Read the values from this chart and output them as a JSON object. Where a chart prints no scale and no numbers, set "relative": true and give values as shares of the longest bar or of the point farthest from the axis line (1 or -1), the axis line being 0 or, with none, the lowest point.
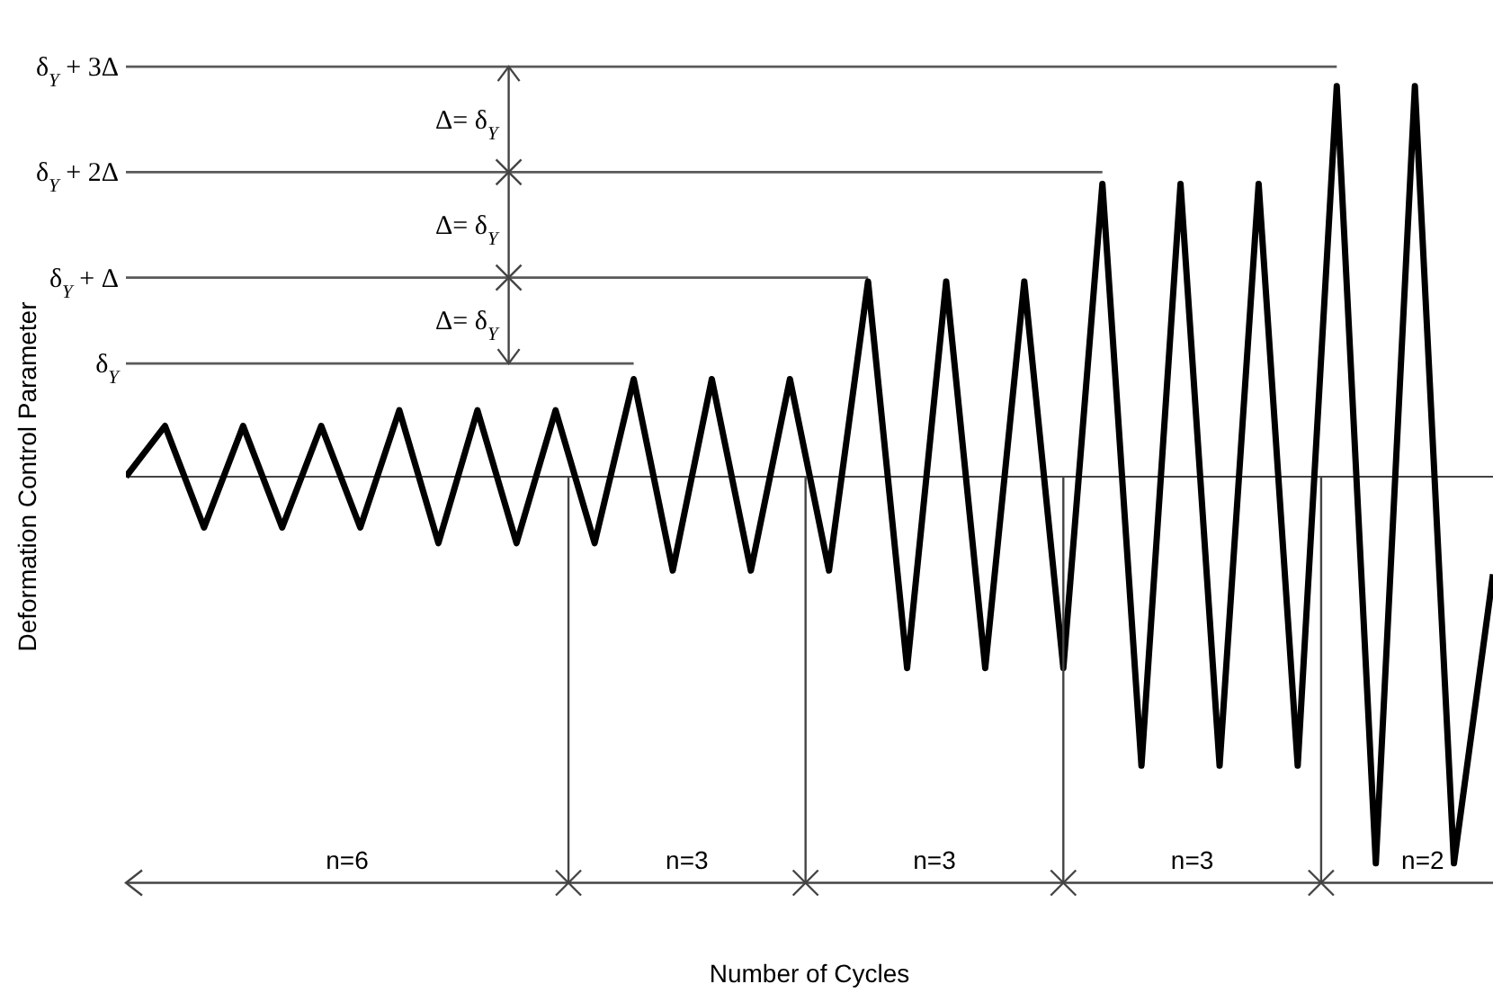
{
  "chart_data": {
    "type": "line",
    "relative": true,
    "xlabel": "Number of Cycles",
    "ylabel": "Deformation Control Parameter",
    "categories": [
      null,
      null,
      null,
      null,
      null,
      null,
      null,
      null,
      null,
      null,
      null,
      null,
      null,
      null,
      null,
      null,
      null,
      null,
      null,
      null,
      null,
      null,
      null,
      null,
      null,
      null,
      null,
      null,
      null,
      null,
      null,
      null,
      null,
      null,
      null,
      null
    ],
    "series": [
      {
        "color": "#000000",
        "values": [
          0,
          0.13,
          -0.13,
          0.13,
          -0.13,
          0.13,
          -0.13,
          0.17,
          -0.17,
          0.17,
          -0.17,
          0.17,
          -0.17,
          0.25,
          -0.24,
          0.25,
          -0.24,
          0.25,
          -0.24,
          0.5,
          -0.49,
          0.5,
          -0.49,
          0.5,
          -0.49,
          0.75,
          -0.74,
          0.75,
          -0.74,
          0.75,
          -0.74,
          1,
          -0.99,
          1,
          -0.99,
          -0.25
        ]
      }
    ],
    "ref_lines": [
      {
        "axis": "y",
        "value": 0.29,
        "label": "δ$_{Y}$",
        "color": "#595959"
      },
      {
        "axis": "y",
        "value": 0.51,
        "label": "δ$_{Y}$ + Δ",
        "color": "#595959"
      },
      {
        "axis": "y",
        "value": 0.78,
        "label": "δ$_{Y}$ + 2Δ",
        "color": "#595959"
      },
      {
        "axis": "y",
        "value": 1.05,
        "label": "δ$_{Y}$ + 3Δ",
        "color": "#595959"
      }
    ],
    "annotations": [
      "Δ= δ$_{Y}$",
      "Δ= δ$_{Y}$",
      "Δ= δ$_{Y}$",
      "n=6",
      "n=3",
      "n=3",
      "n=3",
      "n=2"
    ],
    "marker": "none",
    "line_style": "solid"
  }
}
